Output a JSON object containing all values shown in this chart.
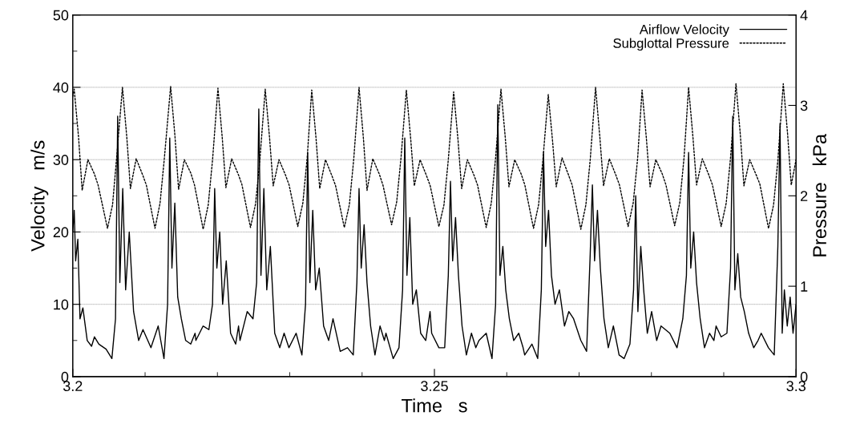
{
  "chart_data": {
    "type": "line",
    "xlabel": "Time   s",
    "ylabel": "Velocity   m/s",
    "y2label": "Pressure   kPa",
    "xlim": [
      3.2,
      3.3
    ],
    "xticks": [
      3.2,
      {
        "value": 3.21,
        "label": null
      },
      {
        "value": 3.22,
        "label": null
      },
      {
        "value": 3.23,
        "label": null
      },
      {
        "value": 3.24,
        "label": null
      },
      3.25,
      {
        "value": 3.26,
        "label": null
      },
      {
        "value": 3.27,
        "label": null
      },
      {
        "value": 3.28,
        "label": null
      },
      {
        "value": 3.29,
        "label": null
      },
      3.3
    ],
    "ylim": [
      0,
      50
    ],
    "yticks": [
      0,
      {
        "value": 5,
        "label": null
      },
      10,
      {
        "value": 15,
        "label": null
      },
      20,
      {
        "value": 25,
        "label": null
      },
      30,
      {
        "value": 35,
        "label": null
      },
      40,
      {
        "value": 45,
        "label": null
      },
      50
    ],
    "y2lim": [
      0,
      4
    ],
    "y2ticks": [
      0,
      1,
      2,
      3,
      4
    ],
    "grid": "y",
    "legend": "top right",
    "series": [
      {
        "name": "Airflow Velocity",
        "color": "#000000",
        "line_style": "solid",
        "x": [
          3.2,
          3.2002,
          3.2004,
          3.2007,
          3.201,
          3.2014,
          3.202,
          3.2026,
          3.203,
          3.20361,
          3.20461,
          3.20541,
          3.20591,
          3.20621,
          3.20651,
          3.20691,
          3.20731,
          3.20781,
          3.20841,
          3.20911,
          3.20971,
          3.21081,
          3.21181,
          3.21261,
          3.21311,
          3.21341,
          3.21371,
          3.21411,
          3.21451,
          3.21501,
          3.21561,
          3.21631,
          3.21691,
          3.21702,
          3.21802,
          3.21882,
          3.21932,
          3.21962,
          3.21992,
          3.22032,
          3.22072,
          3.22122,
          3.22182,
          3.22252,
          3.22292,
          3.22312,
          3.22412,
          3.22492,
          3.22542,
          3.22572,
          3.22602,
          3.22642,
          3.22682,
          3.22732,
          3.22792,
          3.22862,
          3.22922,
          3.22988,
          3.23088,
          3.23168,
          3.23218,
          3.23248,
          3.23278,
          3.23318,
          3.23358,
          3.23408,
          3.23468,
          3.23538,
          3.23598,
          3.23698,
          3.23798,
          3.23878,
          3.23928,
          3.23958,
          3.23988,
          3.24028,
          3.24068,
          3.24118,
          3.24178,
          3.24248,
          3.24308,
          3.2433,
          3.2443,
          3.2451,
          3.2456,
          3.2459,
          3.2462,
          3.2466,
          3.247,
          3.2475,
          3.2481,
          3.2488,
          3.2494,
          3.24962,
          3.25062,
          3.25142,
          3.25192,
          3.25222,
          3.25252,
          3.25292,
          3.25332,
          3.25382,
          3.25442,
          3.25512,
          3.25572,
          3.25616,
          3.25716,
          3.25796,
          3.25846,
          3.25876,
          3.25906,
          3.25946,
          3.25986,
          3.26036,
          3.26096,
          3.26166,
          3.26226,
          3.26248,
          3.26348,
          3.26428,
          3.26478,
          3.26508,
          3.26538,
          3.26578,
          3.26618,
          3.26668,
          3.26728,
          3.26798,
          3.26858,
          3.26924,
          3.27024,
          3.27104,
          3.27154,
          3.27184,
          3.27214,
          3.27254,
          3.27294,
          3.27344,
          3.27404,
          3.27474,
          3.27534,
          3.27553,
          3.27623,
          3.27703,
          3.27753,
          3.27783,
          3.27813,
          3.27853,
          3.27893,
          3.27943,
          3.28003,
          3.28073,
          3.28133,
          3.28254,
          3.28354,
          3.28434,
          3.28484,
          3.28514,
          3.28544,
          3.28584,
          3.28624,
          3.28674,
          3.28734,
          3.28804,
          3.28864,
          3.28894,
          3.28964,
          3.29044,
          3.29094,
          3.29124,
          3.29154,
          3.29194,
          3.29234,
          3.29284,
          3.29344,
          3.29414,
          3.29474,
          3.29518,
          3.29618,
          3.29698,
          3.29748,
          3.29778,
          3.29808,
          3.29838,
          3.29878,
          3.29918,
          3.29958,
          3.3
        ],
        "values": [
          20,
          23,
          16,
          19,
          8,
          9.5,
          5,
          4.2,
          5.5,
          4.5,
          3.8,
          2.5,
          8,
          36,
          13,
          26,
          12,
          20,
          9,
          5,
          6.5,
          4,
          7,
          2.5,
          10,
          33,
          15,
          24,
          11,
          8,
          5,
          4.5,
          6,
          5,
          7,
          6.5,
          10,
          26,
          15,
          20,
          10,
          16,
          6,
          4.5,
          7,
          5,
          9,
          8,
          13,
          37,
          14,
          26,
          12,
          18,
          6,
          4,
          6,
          4,
          6,
          3,
          10,
          31,
          13,
          23,
          12,
          15,
          7,
          5,
          8,
          3.5,
          4,
          3,
          13,
          26,
          15,
          21,
          13,
          7,
          3,
          7,
          5,
          6,
          2.5,
          4,
          12,
          33,
          14,
          22,
          10,
          12,
          6,
          5,
          9,
          6,
          4,
          4,
          14,
          27,
          16,
          22,
          14,
          7,
          3,
          6,
          4,
          5,
          6,
          2.5,
          10,
          37.6,
          14,
          18,
          12,
          8,
          5,
          6,
          4,
          3,
          4.5,
          2.5,
          12,
          31,
          18,
          23,
          14,
          10,
          12,
          7,
          9,
          8,
          5,
          3.5,
          17,
          26.5,
          16,
          23,
          15,
          8,
          4,
          7,
          4,
          3,
          2.5,
          4.5,
          12,
          25,
          9,
          18,
          12,
          6,
          9,
          5,
          7,
          6,
          4,
          8,
          14,
          31,
          15,
          20,
          13,
          8,
          4,
          6,
          5,
          7,
          5.5,
          6,
          15,
          36,
          12,
          17,
          11,
          9,
          6,
          4,
          5,
          6,
          4,
          3,
          18,
          35,
          6,
          12,
          7,
          11,
          6,
          10
        ]
      },
      {
        "name": "Subglottal Pressure",
        "color": "#000000",
        "line_style": "dotted",
        "axis": "y2",
        "x": [
          3.2,
          3.2002,
          3.2008,
          3.2013,
          3.2021,
          3.203,
          3.2035,
          3.2048,
          3.2055,
          3.2061,
          3.20687,
          3.20747,
          3.20797,
          3.20877,
          3.20967,
          3.21017,
          3.21137,
          3.21207,
          3.21267,
          3.21353,
          3.21413,
          3.21463,
          3.21543,
          3.21633,
          3.21683,
          3.21803,
          3.21873,
          3.21933,
          3.22007,
          3.22067,
          3.22117,
          3.22197,
          3.22287,
          3.22337,
          3.22457,
          3.22527,
          3.22587,
          3.22661,
          3.22721,
          3.22771,
          3.22851,
          3.22941,
          3.22991,
          3.23111,
          3.23181,
          3.23241,
          3.23304,
          3.23364,
          3.23414,
          3.23494,
          3.23584,
          3.23634,
          3.23754,
          3.23824,
          3.23884,
          3.23958,
          3.24018,
          3.24068,
          3.24148,
          3.24238,
          3.24288,
          3.24408,
          3.24478,
          3.24538,
          3.24612,
          3.24672,
          3.24722,
          3.24802,
          3.24892,
          3.24942,
          3.25062,
          3.25132,
          3.25192,
          3.25266,
          3.25326,
          3.25376,
          3.25456,
          3.25546,
          3.25596,
          3.25716,
          3.25786,
          3.25846,
          3.2592,
          3.2598,
          3.2603,
          3.2611,
          3.262,
          3.2625,
          3.2637,
          3.2644,
          3.265,
          3.26574,
          3.26634,
          3.26684,
          3.26764,
          3.26854,
          3.26904,
          3.27024,
          3.27094,
          3.27154,
          3.27228,
          3.27288,
          3.27338,
          3.27418,
          3.27508,
          3.27558,
          3.27678,
          3.27748,
          3.27808,
          3.27871,
          3.27931,
          3.27981,
          3.28061,
          3.28151,
          3.28201,
          3.28321,
          3.28391,
          3.28451,
          3.28514,
          3.28574,
          3.28624,
          3.28704,
          3.28794,
          3.28844,
          3.28964,
          3.29034,
          3.29094,
          3.29169,
          3.29229,
          3.29279,
          3.29359,
          3.29449,
          3.29499,
          3.29619,
          3.29689,
          3.29749,
          3.29823,
          3.29883,
          3.29933,
          3.3
        ],
        "values": [
          3.1,
          3.18,
          2.65,
          2.06,
          2.4,
          2.24,
          2.12,
          1.64,
          1.9,
          2.45,
          3.2,
          2.65,
          2.08,
          2.41,
          2.23,
          2.12,
          1.64,
          1.92,
          2.42,
          3.21,
          2.66,
          2.07,
          2.4,
          2.25,
          2.12,
          1.63,
          1.9,
          2.4,
          3.19,
          2.64,
          2.09,
          2.41,
          2.24,
          2.13,
          1.65,
          1.91,
          2.4,
          3.18,
          2.64,
          2.11,
          2.4,
          2.23,
          2.12,
          1.66,
          1.92,
          2.42,
          3.17,
          2.63,
          2.08,
          2.4,
          2.22,
          2.11,
          1.65,
          1.9,
          2.4,
          3.2,
          2.64,
          2.06,
          2.41,
          2.24,
          2.12,
          1.68,
          1.93,
          2.42,
          3.17,
          2.63,
          2.11,
          2.4,
          2.22,
          2.11,
          1.66,
          1.9,
          2.4,
          3.15,
          2.62,
          2.08,
          2.4,
          2.23,
          2.12,
          1.65,
          1.92,
          2.42,
          3.18,
          2.64,
          2.1,
          2.4,
          2.24,
          2.12,
          1.64,
          1.9,
          2.4,
          3.12,
          2.6,
          2.1,
          2.42,
          2.23,
          2.12,
          1.63,
          1.9,
          2.4,
          3.2,
          2.64,
          2.11,
          2.41,
          2.23,
          2.12,
          1.66,
          1.92,
          2.4,
          3.17,
          2.63,
          2.1,
          2.4,
          2.24,
          2.12,
          1.67,
          1.92,
          2.42,
          3.2,
          2.65,
          2.12,
          2.41,
          2.23,
          2.12,
          1.66,
          1.92,
          2.42,
          3.24,
          2.68,
          2.11,
          2.4,
          2.23,
          2.13,
          1.64,
          1.9,
          2.4,
          3.24,
          2.68,
          2.12,
          2.4
        ]
      }
    ]
  }
}
